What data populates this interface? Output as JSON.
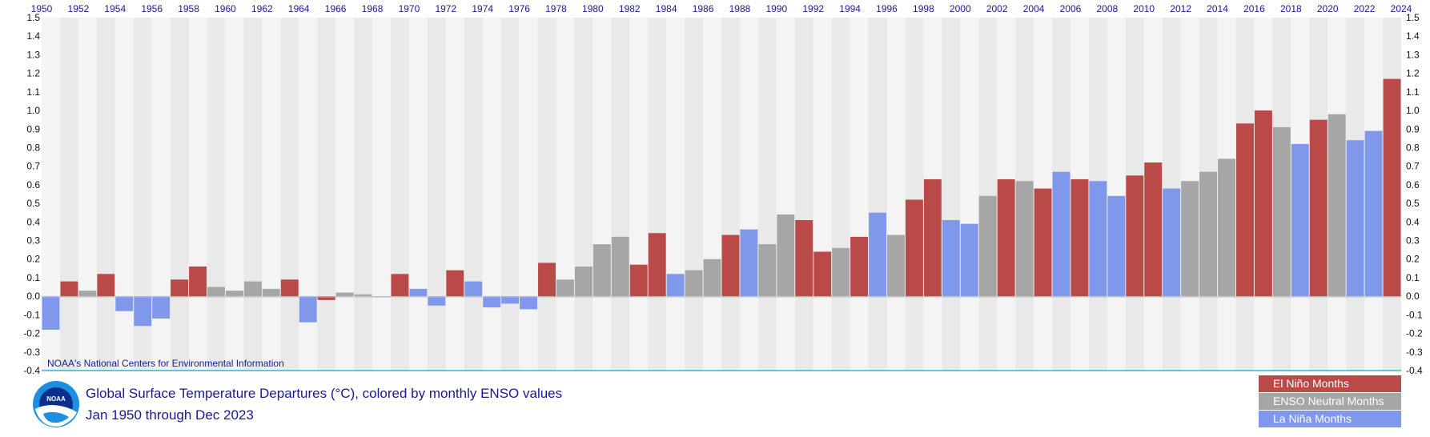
{
  "chart_data": {
    "type": "bar",
    "title": "Global Surface Temperature Departures (°C), colored by monthly ENSO values",
    "subtitle": "Jan 1950 through Dec 2023",
    "source": "NOAA's National Centers for Environmental Information",
    "ylim": [
      -0.4,
      1.5
    ],
    "yticks": [
      "-0.4",
      "-0.3",
      "-0.2",
      "-0.1",
      "0.0",
      "0.1",
      "0.2",
      "0.3",
      "0.4",
      "0.5",
      "0.6",
      "0.7",
      "0.8",
      "0.9",
      "1.0",
      "1.1",
      "1.2",
      "1.3",
      "1.4",
      "1.5"
    ],
    "xlim": [
      1950,
      2024
    ],
    "xticks": [
      "1950",
      "1952",
      "1954",
      "1956",
      "1958",
      "1960",
      "1962",
      "1964",
      "1966",
      "1968",
      "1970",
      "1972",
      "1974",
      "1976",
      "1978",
      "1980",
      "1982",
      "1984",
      "1986",
      "1988",
      "1990",
      "1992",
      "1994",
      "1996",
      "1998",
      "2000",
      "2002",
      "2004",
      "2006",
      "2008",
      "2010",
      "2012",
      "2014",
      "2016",
      "2018",
      "2020",
      "2022",
      "2024"
    ],
    "grid": "alternating year bands",
    "colors": {
      "nino": "#b94a48",
      "neutral": "#a6a6a6",
      "nina": "#7f98ec"
    },
    "series": [
      {
        "name": "El Niño Months",
        "color": "#b94a48"
      },
      {
        "name": "ENSO Neutral Months",
        "color": "#a6a6a6"
      },
      {
        "name": "La Niña Months",
        "color": "#7f98ec"
      }
    ],
    "yearly": [
      {
        "year": 1950,
        "enso": "nina",
        "value": -0.18
      },
      {
        "year": 1951,
        "enso": "nino",
        "value": 0.08
      },
      {
        "year": 1952,
        "enso": "neutral",
        "value": 0.03
      },
      {
        "year": 1953,
        "enso": "nino",
        "value": 0.12
      },
      {
        "year": 1954,
        "enso": "nina",
        "value": -0.08
      },
      {
        "year": 1955,
        "enso": "nina",
        "value": -0.16
      },
      {
        "year": 1956,
        "enso": "nina",
        "value": -0.12
      },
      {
        "year": 1957,
        "enso": "nino",
        "value": 0.09
      },
      {
        "year": 1958,
        "enso": "nino",
        "value": 0.16
      },
      {
        "year": 1959,
        "enso": "neutral",
        "value": 0.05
      },
      {
        "year": 1960,
        "enso": "neutral",
        "value": 0.03
      },
      {
        "year": 1961,
        "enso": "neutral",
        "value": 0.08
      },
      {
        "year": 1962,
        "enso": "neutral",
        "value": 0.04
      },
      {
        "year": 1963,
        "enso": "nino",
        "value": 0.09
      },
      {
        "year": 1964,
        "enso": "nina",
        "value": -0.14
      },
      {
        "year": 1965,
        "enso": "nino",
        "value": -0.02
      },
      {
        "year": 1966,
        "enso": "neutral",
        "value": 0.02
      },
      {
        "year": 1967,
        "enso": "neutral",
        "value": 0.01
      },
      {
        "year": 1968,
        "enso": "neutral",
        "value": 0.0
      },
      {
        "year": 1969,
        "enso": "nino",
        "value": 0.12
      },
      {
        "year": 1970,
        "enso": "nina",
        "value": 0.04
      },
      {
        "year": 1971,
        "enso": "nina",
        "value": -0.05
      },
      {
        "year": 1972,
        "enso": "nino",
        "value": 0.14
      },
      {
        "year": 1973,
        "enso": "nina",
        "value": 0.08
      },
      {
        "year": 1974,
        "enso": "nina",
        "value": -0.06
      },
      {
        "year": 1975,
        "enso": "nina",
        "value": -0.04
      },
      {
        "year": 1976,
        "enso": "nina",
        "value": -0.07
      },
      {
        "year": 1977,
        "enso": "nino",
        "value": 0.18
      },
      {
        "year": 1978,
        "enso": "neutral",
        "value": 0.09
      },
      {
        "year": 1979,
        "enso": "neutral",
        "value": 0.16
      },
      {
        "year": 1980,
        "enso": "neutral",
        "value": 0.28
      },
      {
        "year": 1981,
        "enso": "neutral",
        "value": 0.32
      },
      {
        "year": 1982,
        "enso": "nino",
        "value": 0.17
      },
      {
        "year": 1983,
        "enso": "nino",
        "value": 0.34
      },
      {
        "year": 1984,
        "enso": "nina",
        "value": 0.12
      },
      {
        "year": 1985,
        "enso": "neutral",
        "value": 0.14
      },
      {
        "year": 1986,
        "enso": "neutral",
        "value": 0.2
      },
      {
        "year": 1987,
        "enso": "nino",
        "value": 0.33
      },
      {
        "year": 1988,
        "enso": "nina",
        "value": 0.36
      },
      {
        "year": 1989,
        "enso": "neutral",
        "value": 0.28
      },
      {
        "year": 1990,
        "enso": "neutral",
        "value": 0.44
      },
      {
        "year": 1991,
        "enso": "nino",
        "value": 0.41
      },
      {
        "year": 1992,
        "enso": "nino",
        "value": 0.24
      },
      {
        "year": 1993,
        "enso": "neutral",
        "value": 0.26
      },
      {
        "year": 1994,
        "enso": "nino",
        "value": 0.32
      },
      {
        "year": 1995,
        "enso": "nina",
        "value": 0.45
      },
      {
        "year": 1996,
        "enso": "neutral",
        "value": 0.33
      },
      {
        "year": 1997,
        "enso": "nino",
        "value": 0.52
      },
      {
        "year": 1998,
        "enso": "nino",
        "value": 0.63
      },
      {
        "year": 1999,
        "enso": "nina",
        "value": 0.41
      },
      {
        "year": 2000,
        "enso": "nina",
        "value": 0.39
      },
      {
        "year": 2001,
        "enso": "neutral",
        "value": 0.54
      },
      {
        "year": 2002,
        "enso": "nino",
        "value": 0.63
      },
      {
        "year": 2003,
        "enso": "neutral",
        "value": 0.62
      },
      {
        "year": 2004,
        "enso": "nino",
        "value": 0.58
      },
      {
        "year": 2005,
        "enso": "nina",
        "value": 0.67
      },
      {
        "year": 2006,
        "enso": "nino",
        "value": 0.63
      },
      {
        "year": 2007,
        "enso": "nina",
        "value": 0.62
      },
      {
        "year": 2008,
        "enso": "nina",
        "value": 0.54
      },
      {
        "year": 2009,
        "enso": "nino",
        "value": 0.65
      },
      {
        "year": 2010,
        "enso": "nino",
        "value": 0.72
      },
      {
        "year": 2011,
        "enso": "nina",
        "value": 0.58
      },
      {
        "year": 2012,
        "enso": "neutral",
        "value": 0.62
      },
      {
        "year": 2013,
        "enso": "neutral",
        "value": 0.67
      },
      {
        "year": 2014,
        "enso": "neutral",
        "value": 0.74
      },
      {
        "year": 2015,
        "enso": "nino",
        "value": 0.93
      },
      {
        "year": 2016,
        "enso": "nino",
        "value": 1.0
      },
      {
        "year": 2017,
        "enso": "neutral",
        "value": 0.91
      },
      {
        "year": 2018,
        "enso": "nina",
        "value": 0.82
      },
      {
        "year": 2019,
        "enso": "nino",
        "value": 0.95
      },
      {
        "year": 2020,
        "enso": "neutral",
        "value": 0.98
      },
      {
        "year": 2021,
        "enso": "nina",
        "value": 0.84
      },
      {
        "year": 2022,
        "enso": "nina",
        "value": 0.89
      },
      {
        "year": 2023,
        "enso": "nino",
        "value": 1.17
      }
    ]
  },
  "legend": {
    "nino_label": "El Niño Months",
    "neutral_label": "ENSO Neutral Months",
    "nina_label": "La Niña Months"
  },
  "logo": {
    "text": "NOAA"
  }
}
